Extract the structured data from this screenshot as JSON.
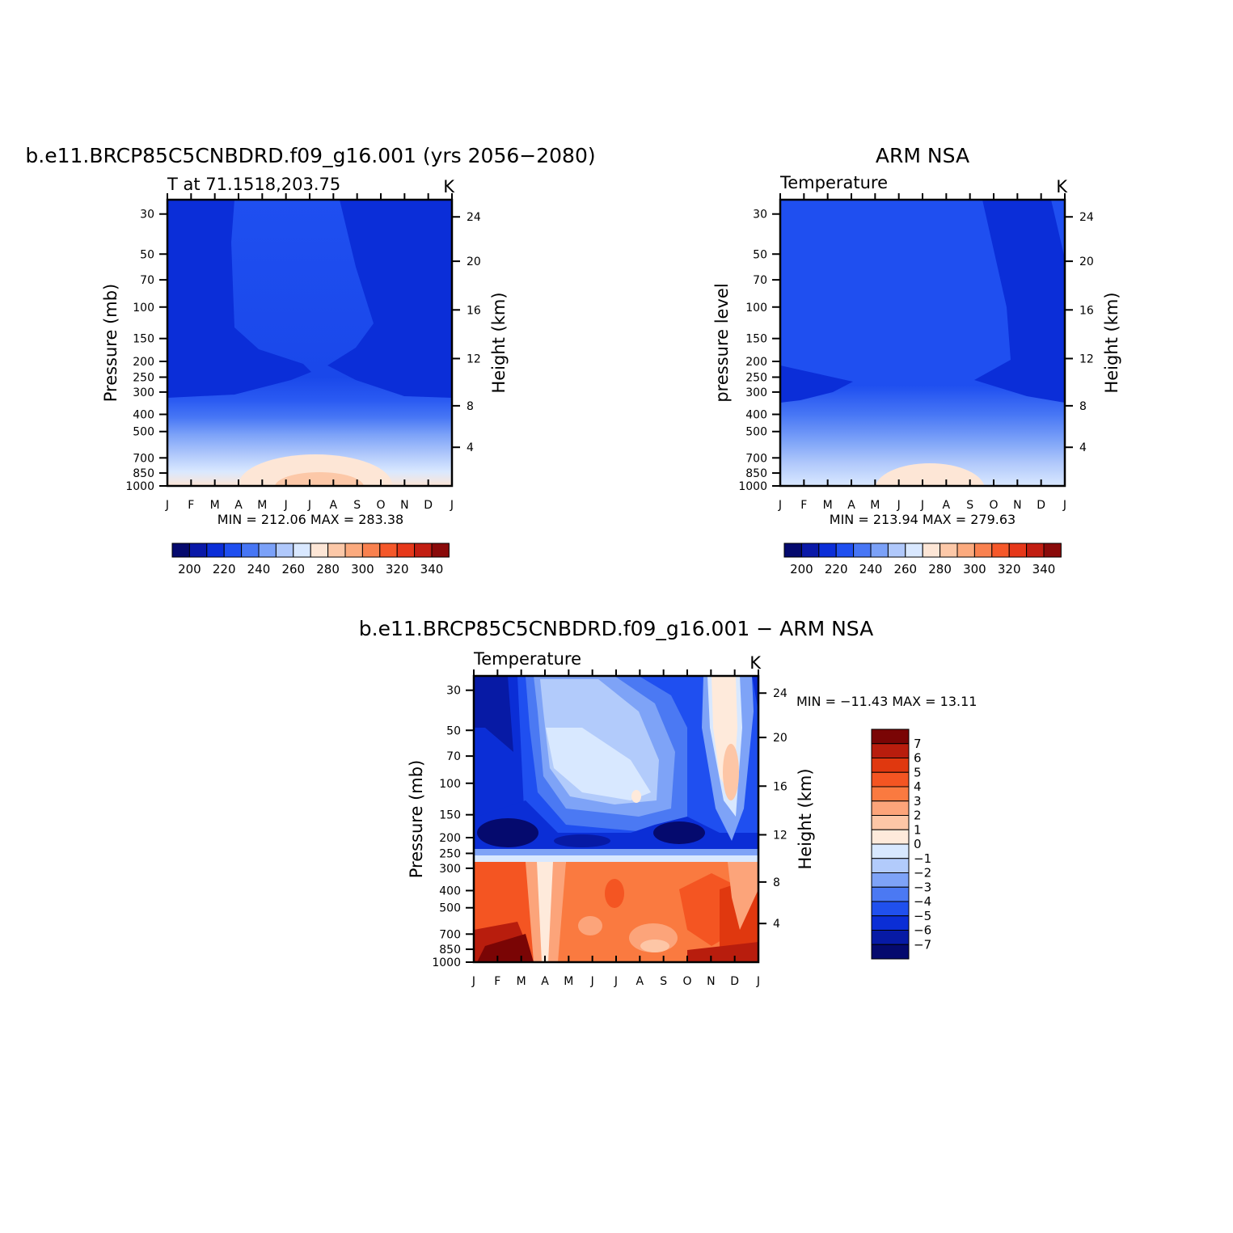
{
  "chart_data": [
    {
      "type": "heatmap",
      "title": "b.e11.BRCP85C5CNBDRD.f09_g16.001 (yrs 2056−2080)",
      "subtitle_left": "T at 71.1518,203.75",
      "subtitle_right": "K",
      "ylabel": "Pressure (mb)",
      "y2label": "Height (km)",
      "x_ticks": [
        "J",
        "F",
        "M",
        "A",
        "M",
        "J",
        "J",
        "A",
        "S",
        "O",
        "N",
        "D",
        "J"
      ],
      "y_ticks": [
        "30",
        "50",
        "70",
        "100",
        "150",
        "200",
        "250",
        "300",
        "400",
        "500",
        "700",
        "850",
        "1000"
      ],
      "y2_ticks": [
        "24",
        "20",
        "16",
        "12",
        "8",
        "4"
      ],
      "stats": "MIN = 212.06 MAX = 283.38",
      "colorbar": {
        "orientation": "horizontal",
        "labels": [
          "200",
          "220",
          "240",
          "260",
          "280",
          "300",
          "320",
          "340"
        ],
        "colors": [
          "#050a6e",
          "#0a19a8",
          "#0b2ed8",
          "#1f4ff0",
          "#4776f5",
          "#7ba1f8",
          "#b0c8fb",
          "#d9e8ff",
          "#fde6d6",
          "#fcc8a8",
          "#fbaa7e",
          "#f9814f",
          "#f5582a",
          "#e6381a",
          "#c21e12",
          "#8a0a0a"
        ]
      },
      "x_range": [
        0,
        12
      ],
      "y_range": [
        1000,
        20
      ]
    },
    {
      "type": "heatmap",
      "title": "ARM NSA",
      "subtitle_left": "Temperature",
      "subtitle_right": "K",
      "ylabel": "pressure level",
      "y2label": "Height (km)",
      "x_ticks": [
        "J",
        "F",
        "M",
        "A",
        "M",
        "J",
        "J",
        "A",
        "S",
        "O",
        "N",
        "D",
        "J"
      ],
      "y_ticks": [
        "30",
        "50",
        "70",
        "100",
        "150",
        "200",
        "250",
        "300",
        "400",
        "500",
        "700",
        "850",
        "1000"
      ],
      "y2_ticks": [
        "24",
        "20",
        "16",
        "12",
        "8",
        "4"
      ],
      "stats": "MIN = 213.94 MAX = 279.63",
      "colorbar": {
        "orientation": "horizontal",
        "labels": [
          "200",
          "220",
          "240",
          "260",
          "280",
          "300",
          "320",
          "340"
        ]
      },
      "x_range": [
        0,
        12
      ],
      "y_range": [
        1000,
        20
      ]
    },
    {
      "type": "heatmap",
      "title": "b.e11.BRCP85C5CNBDRD.f09_g16.001 − ARM NSA",
      "subtitle_left": "Temperature",
      "subtitle_right": "K",
      "ylabel": "Pressure (mb)",
      "y2label": "Height (km)",
      "x_ticks": [
        "J",
        "F",
        "M",
        "A",
        "M",
        "J",
        "J",
        "A",
        "S",
        "O",
        "N",
        "D",
        "J"
      ],
      "y_ticks": [
        "30",
        "50",
        "70",
        "100",
        "150",
        "200",
        "250",
        "300",
        "400",
        "500",
        "700",
        "850",
        "1000"
      ],
      "y2_ticks": [
        "24",
        "20",
        "16",
        "12",
        "8",
        "4"
      ],
      "stats": "MIN = −11.43 MAX =  13.11",
      "colorbar": {
        "orientation": "vertical",
        "labels": [
          "7",
          "6",
          "5",
          "4",
          "3",
          "2",
          "1",
          "0",
          "−1",
          "−2",
          "−3",
          "−4",
          "−5",
          "−6",
          "−7"
        ],
        "colors": [
          "#7a0505",
          "#b81d0d",
          "#e0380f",
          "#f45522",
          "#fa7a40",
          "#fca47a",
          "#fdc6a6",
          "#feeadb",
          "#d8e8ff",
          "#b2cbfb",
          "#7ea3f7",
          "#4b79f3",
          "#2050ee",
          "#0b2ed6",
          "#071aa5",
          "#050a6e"
        ]
      },
      "x_range": [
        0,
        12
      ],
      "y_range": [
        1000,
        20
      ]
    }
  ]
}
